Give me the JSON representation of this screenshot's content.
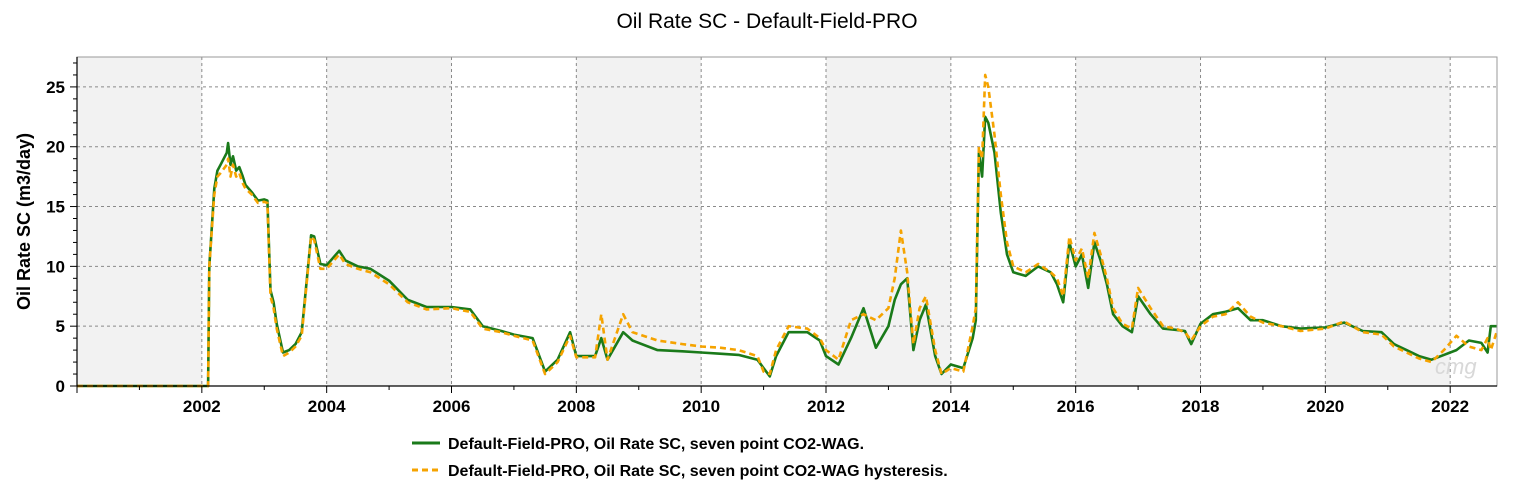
{
  "chart_data": {
    "type": "line",
    "title": "Oil Rate SC - Default-Field-PRO",
    "xlabel": "",
    "ylabel": "Oil Rate SC (m3/day)",
    "xlim": [
      2000.0,
      2022.75
    ],
    "ylim": [
      0,
      27.5
    ],
    "x_ticks": [
      "2002",
      "2004",
      "2006",
      "2008",
      "2010",
      "2012",
      "2014",
      "2016",
      "2018",
      "2020",
      "2022"
    ],
    "y_ticks": [
      "0",
      "5",
      "10",
      "15",
      "20",
      "25"
    ],
    "grid": true,
    "legend_position": "bottom",
    "watermark": "cmg",
    "series": [
      {
        "name": "Default-Field-PRO, Oil Rate SC, seven point CO2-WAG.",
        "color": "#1a7a1a",
        "dash": "solid",
        "x": [
          2000.0,
          2002.1,
          2002.12,
          2002.2,
          2002.25,
          2002.3,
          2002.4,
          2002.42,
          2002.46,
          2002.5,
          2002.55,
          2002.6,
          2002.65,
          2002.7,
          2002.8,
          2002.9,
          2003.0,
          2003.05,
          2003.1,
          2003.15,
          2003.2,
          2003.3,
          2003.4,
          2003.5,
          2003.6,
          2003.75,
          2003.8,
          2003.9,
          2004.0,
          2004.2,
          2004.3,
          2004.5,
          2004.7,
          2005.0,
          2005.3,
          2005.6,
          2006.0,
          2006.3,
          2006.5,
          2006.8,
          2007.0,
          2007.3,
          2007.5,
          2007.7,
          2007.9,
          2008.0,
          2008.3,
          2008.4,
          2008.5,
          2008.75,
          2008.9,
          2009.3,
          2009.7,
          2010.0,
          2010.3,
          2010.6,
          2010.9,
          2011.0,
          2011.1,
          2011.2,
          2011.4,
          2011.7,
          2011.9,
          2012.0,
          2012.2,
          2012.4,
          2012.6,
          2012.8,
          2013.0,
          2013.1,
          2013.2,
          2013.3,
          2013.4,
          2013.5,
          2013.6,
          2013.75,
          2013.85,
          2014.0,
          2014.2,
          2014.35,
          2014.4,
          2014.45,
          2014.5,
          2014.55,
          2014.6,
          2014.7,
          2014.8,
          2014.9,
          2015.0,
          2015.2,
          2015.4,
          2015.6,
          2015.7,
          2015.8,
          2015.9,
          2016.0,
          2016.1,
          2016.2,
          2016.3,
          2016.4,
          2016.5,
          2016.6,
          2016.75,
          2016.9,
          2017.0,
          2017.2,
          2017.4,
          2017.6,
          2017.75,
          2017.85,
          2018.0,
          2018.2,
          2018.4,
          2018.6,
          2018.8,
          2019.0,
          2019.3,
          2019.6,
          2020.0,
          2020.3,
          2020.6,
          2020.9,
          2021.1,
          2021.3,
          2021.5,
          2021.7,
          2021.9,
          2022.1,
          2022.3,
          2022.5,
          2022.6,
          2022.65,
          2022.75
        ],
        "y": [
          0,
          0,
          10,
          16.5,
          18,
          18.5,
          19.5,
          20.3,
          18.5,
          19.2,
          18,
          18.3,
          17.6,
          16.8,
          16.2,
          15.5,
          15.6,
          15.5,
          8,
          7,
          5.2,
          2.8,
          3,
          3.5,
          4.5,
          12.6,
          12.5,
          10.2,
          10.1,
          11.3,
          10.5,
          10,
          9.8,
          8.8,
          7.2,
          6.6,
          6.6,
          6.4,
          5,
          4.6,
          4.3,
          4,
          1.2,
          2.2,
          4.5,
          2.5,
          2.5,
          4,
          2.2,
          4.5,
          3.8,
          3,
          2.9,
          2.8,
          2.7,
          2.6,
          2.2,
          1.5,
          0.8,
          2.5,
          4.5,
          4.5,
          3.8,
          2.5,
          1.8,
          4,
          6.5,
          3.2,
          5,
          7.2,
          8.5,
          9,
          3,
          5.5,
          6.8,
          2.5,
          1.0,
          1.8,
          1.5,
          4,
          5.5,
          19.5,
          17.5,
          22.5,
          22,
          19.5,
          14.5,
          11,
          9.5,
          9.2,
          10,
          9.5,
          8.5,
          7,
          12,
          10,
          11,
          8.2,
          12,
          10.5,
          8.5,
          6,
          5,
          4.5,
          7.5,
          6,
          4.8,
          4.7,
          4.6,
          3.5,
          5.2,
          6,
          6.2,
          6.5,
          5.5,
          5.5,
          5.0,
          4.8,
          4.9,
          5.3,
          4.6,
          4.5,
          3.5,
          3.0,
          2.5,
          2.2,
          2.6,
          3.0,
          3.8,
          3.6,
          2.8,
          5.0,
          5.0
        ]
      },
      {
        "name": "Default-Field-PRO, Oil Rate SC, seven point CO2-WAG hysteresis.",
        "color": "#f5a300",
        "dash": "dashed",
        "x": [
          2000.0,
          2002.1,
          2002.12,
          2002.2,
          2002.25,
          2002.3,
          2002.4,
          2002.42,
          2002.46,
          2002.5,
          2002.55,
          2002.6,
          2002.65,
          2002.7,
          2002.8,
          2002.9,
          2003.0,
          2003.05,
          2003.1,
          2003.15,
          2003.2,
          2003.3,
          2003.4,
          2003.5,
          2003.6,
          2003.75,
          2003.8,
          2003.9,
          2004.0,
          2004.2,
          2004.3,
          2004.5,
          2004.7,
          2005.0,
          2005.3,
          2005.6,
          2006.0,
          2006.3,
          2006.5,
          2006.8,
          2007.0,
          2007.3,
          2007.5,
          2007.7,
          2007.9,
          2008.0,
          2008.3,
          2008.4,
          2008.5,
          2008.75,
          2008.9,
          2009.3,
          2009.7,
          2010.0,
          2010.3,
          2010.6,
          2010.9,
          2011.0,
          2011.1,
          2011.2,
          2011.4,
          2011.7,
          2011.9,
          2012.0,
          2012.2,
          2012.4,
          2012.6,
          2012.8,
          2013.0,
          2013.1,
          2013.2,
          2013.3,
          2013.4,
          2013.5,
          2013.6,
          2013.75,
          2013.85,
          2014.0,
          2014.2,
          2014.35,
          2014.4,
          2014.45,
          2014.5,
          2014.55,
          2014.6,
          2014.7,
          2014.8,
          2014.9,
          2015.0,
          2015.2,
          2015.4,
          2015.6,
          2015.7,
          2015.8,
          2015.9,
          2016.0,
          2016.1,
          2016.2,
          2016.3,
          2016.4,
          2016.5,
          2016.6,
          2016.75,
          2016.9,
          2017.0,
          2017.2,
          2017.4,
          2017.6,
          2017.75,
          2017.85,
          2018.0,
          2018.2,
          2018.4,
          2018.6,
          2018.8,
          2019.0,
          2019.3,
          2019.6,
          2020.0,
          2020.3,
          2020.6,
          2020.9,
          2021.1,
          2021.3,
          2021.5,
          2021.7,
          2021.9,
          2022.1,
          2022.3,
          2022.5,
          2022.6,
          2022.65,
          2022.75
        ],
        "y": [
          0,
          0,
          10,
          16,
          17.5,
          17.8,
          18.5,
          19,
          17.5,
          18.5,
          17.5,
          17.8,
          17,
          16.5,
          16,
          15.3,
          15.4,
          15.3,
          7.5,
          6.5,
          4.8,
          2.5,
          2.8,
          3.3,
          4.2,
          12.5,
          12.2,
          9.8,
          9.8,
          11,
          10.2,
          9.8,
          9.5,
          8.5,
          7,
          6.4,
          6.5,
          6.2,
          4.8,
          4.5,
          4.2,
          3.8,
          1.0,
          2.0,
          4.2,
          2.4,
          2.4,
          6.0,
          2.2,
          6.0,
          4.5,
          3.8,
          3.5,
          3.3,
          3.2,
          3.0,
          2.5,
          1.2,
          1.0,
          3.0,
          5.0,
          4.8,
          4.0,
          3.0,
          2.2,
          5.5,
          6.0,
          5.5,
          6.5,
          9,
          13,
          9.5,
          3.5,
          6.5,
          7.5,
          3.0,
          1.0,
          1.5,
          1.2,
          5,
          6.5,
          20,
          19,
          26,
          25,
          21,
          16,
          12,
          10,
          9.5,
          10.2,
          9.5,
          9.0,
          7.5,
          12.5,
          10.5,
          11.5,
          9.0,
          12.8,
          11,
          9,
          6.5,
          5.2,
          4.8,
          8.2,
          6.5,
          5.0,
          4.8,
          4.5,
          3.8,
          5.0,
          5.8,
          6.0,
          7.0,
          5.8,
          5.3,
          5.0,
          4.6,
          4.8,
          5.4,
          4.5,
          4.3,
          3.3,
          2.8,
          2.3,
          2.0,
          3.0,
          4.2,
          3.3,
          3.0,
          4.0,
          3.0,
          4.6
        ]
      }
    ]
  }
}
